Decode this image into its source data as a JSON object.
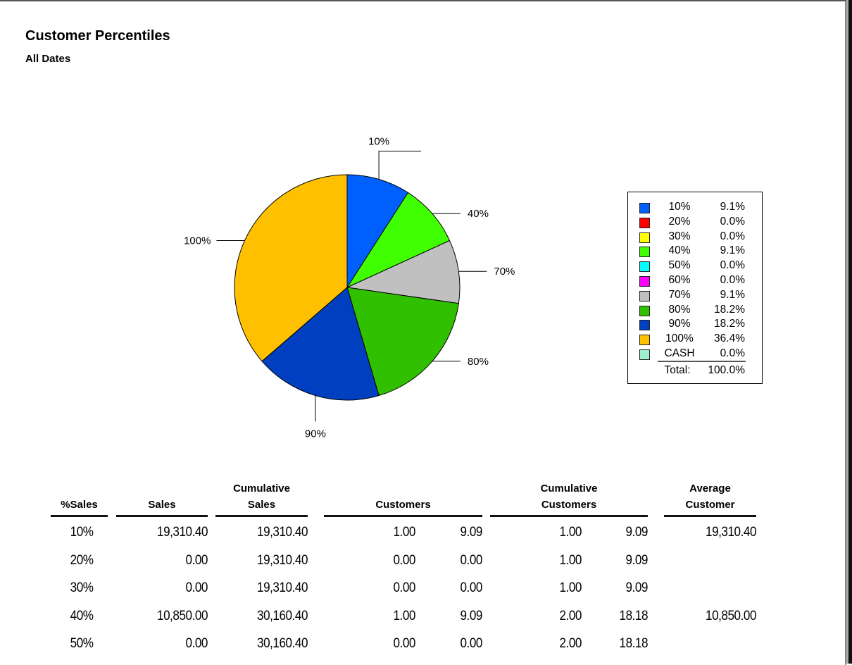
{
  "report": {
    "title": "Customer Percentiles",
    "subtitle": "All Dates"
  },
  "chart_data": {
    "type": "pie",
    "slices": [
      {
        "label": "10%",
        "value": 9.1,
        "color": "#0060ff"
      },
      {
        "label": "20%",
        "value": 0.0,
        "color": "#ff0000"
      },
      {
        "label": "30%",
        "value": 0.0,
        "color": "#ffff00"
      },
      {
        "label": "40%",
        "value": 9.1,
        "color": "#40ff00"
      },
      {
        "label": "50%",
        "value": 0.0,
        "color": "#00ffff"
      },
      {
        "label": "60%",
        "value": 0.0,
        "color": "#ff00ff"
      },
      {
        "label": "70%",
        "value": 9.1,
        "color": "#c0c0c0"
      },
      {
        "label": "80%",
        "value": 18.2,
        "color": "#30c000"
      },
      {
        "label": "90%",
        "value": 18.2,
        "color": "#0040c0"
      },
      {
        "label": "100%",
        "value": 36.4,
        "color": "#ffc000"
      },
      {
        "label": "CASH",
        "value": 0.0,
        "color": "#a0f0d0"
      }
    ],
    "legend": {
      "placement": "right",
      "values": [
        "9.1%",
        "0.0%",
        "0.0%",
        "9.1%",
        "0.0%",
        "0.0%",
        "9.1%",
        "18.2%",
        "18.2%",
        "36.4%",
        "0.0%"
      ],
      "total_label": "Total:",
      "total_value": "100.0%"
    }
  },
  "table": {
    "headers": [
      {
        "line1": "",
        "line2": "%Sales"
      },
      {
        "line1": "",
        "line2": "Sales"
      },
      {
        "line1": "Cumulative",
        "line2": "Sales"
      },
      {
        "line1": "",
        "line2": "Customers"
      },
      {
        "line1": "Cumulative",
        "line2": "Customers"
      },
      {
        "line1": "Average",
        "line2": "Customer"
      }
    ],
    "rows": [
      [
        "10%",
        "19,310.40",
        "19,310.40",
        "1.00",
        "9.09",
        "1.00",
        "9.09",
        "19,310.40"
      ],
      [
        "20%",
        "0.00",
        "19,310.40",
        "0.00",
        "0.00",
        "1.00",
        "9.09",
        ""
      ],
      [
        "30%",
        "0.00",
        "19,310.40",
        "0.00",
        "0.00",
        "1.00",
        "9.09",
        ""
      ],
      [
        "40%",
        "10,850.00",
        "30,160.40",
        "1.00",
        "9.09",
        "2.00",
        "18.18",
        "10,850.00"
      ],
      [
        "50%",
        "0.00",
        "30,160.40",
        "0.00",
        "0.00",
        "2.00",
        "18.18",
        ""
      ]
    ]
  }
}
